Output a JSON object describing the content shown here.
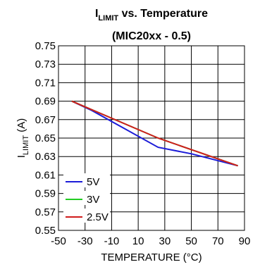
{
  "chart_data": {
    "type": "line",
    "title_main": "I",
    "title_sub": "LIMIT",
    "title_rest": " vs. Temperature",
    "subtitle": "(MIC20xx - 0.5)",
    "xlabel": "TEMPERATURE (°C)",
    "ylabel_main": "I",
    "ylabel_sub": "LIMIT",
    "ylabel_rest": " (A)",
    "xlim": [
      -50,
      90
    ],
    "ylim": [
      0.55,
      0.75
    ],
    "x_ticks": [
      "-50",
      "-30",
      "-10",
      "10",
      "30",
      "50",
      "70",
      "90"
    ],
    "y_ticks": [
      "0.75",
      "0.73",
      "0.71",
      "0.69",
      "0.67",
      "0.65",
      "0.63",
      "0.61",
      "0.59",
      "0.57",
      "0.55"
    ],
    "grid": true,
    "legend_position": "bottom-left",
    "series": [
      {
        "name": "5V",
        "color": "#1c1cd8",
        "x": [
          -40,
          -25,
          0,
          25,
          50,
          85
        ],
        "y": [
          0.69,
          0.68,
          0.66,
          0.64,
          0.633,
          0.62
        ]
      },
      {
        "name": "3V",
        "color": "#22cc22",
        "x": [
          -40,
          25,
          85
        ],
        "y": [
          0.69,
          0.65,
          0.62
        ]
      },
      {
        "name": "2.5V",
        "color": "#d01c1c",
        "x": [
          -40,
          25,
          85
        ],
        "y": [
          0.69,
          0.65,
          0.62
        ]
      }
    ]
  }
}
